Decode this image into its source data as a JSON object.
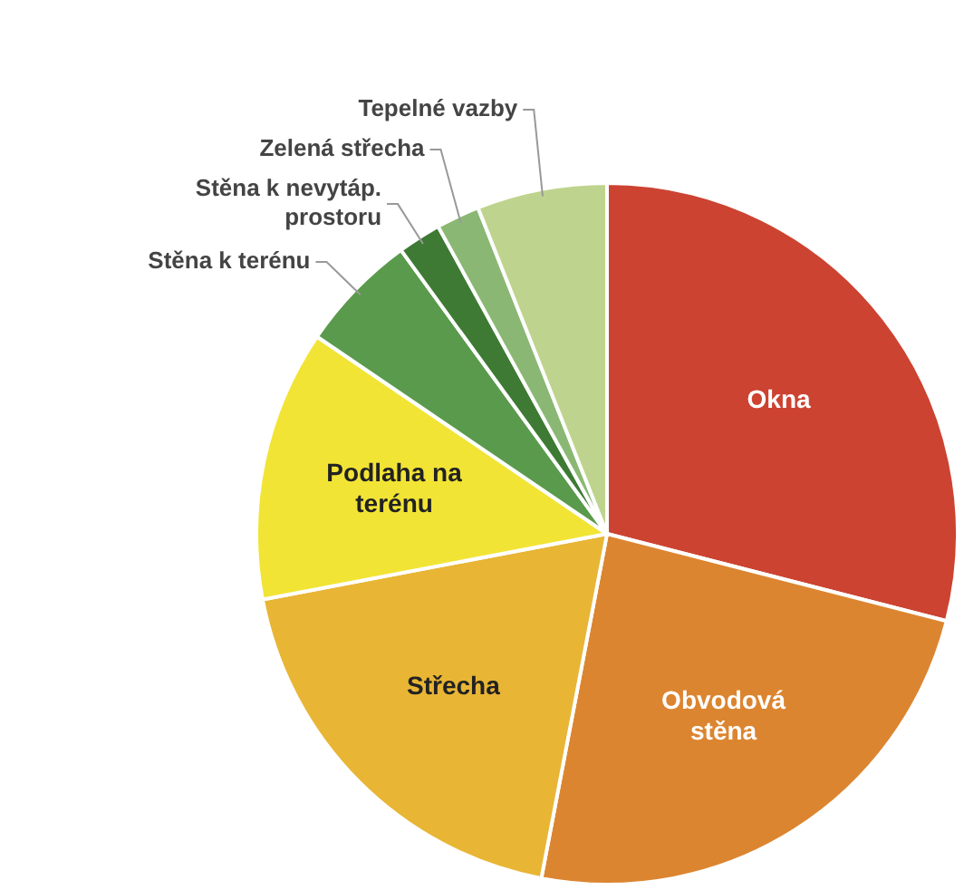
{
  "chart_data": {
    "type": "pie",
    "categories": [
      "Okna",
      "Obvodová stěna",
      "Střecha",
      "Podlaha na terénu",
      "Stěna k terénu",
      "Stěna k nevytáp. prostoru",
      "Zelená střecha",
      "Tepelné vazby"
    ],
    "values": [
      29,
      24,
      19,
      12.5,
      5.5,
      2,
      2,
      6
    ],
    "colors": [
      "#cc4331",
      "#dc8530",
      "#e8b535",
      "#f2e435",
      "#5a9a4c",
      "#3e7a34",
      "#8ab874",
      "#bed48e"
    ],
    "legend": false
  }
}
